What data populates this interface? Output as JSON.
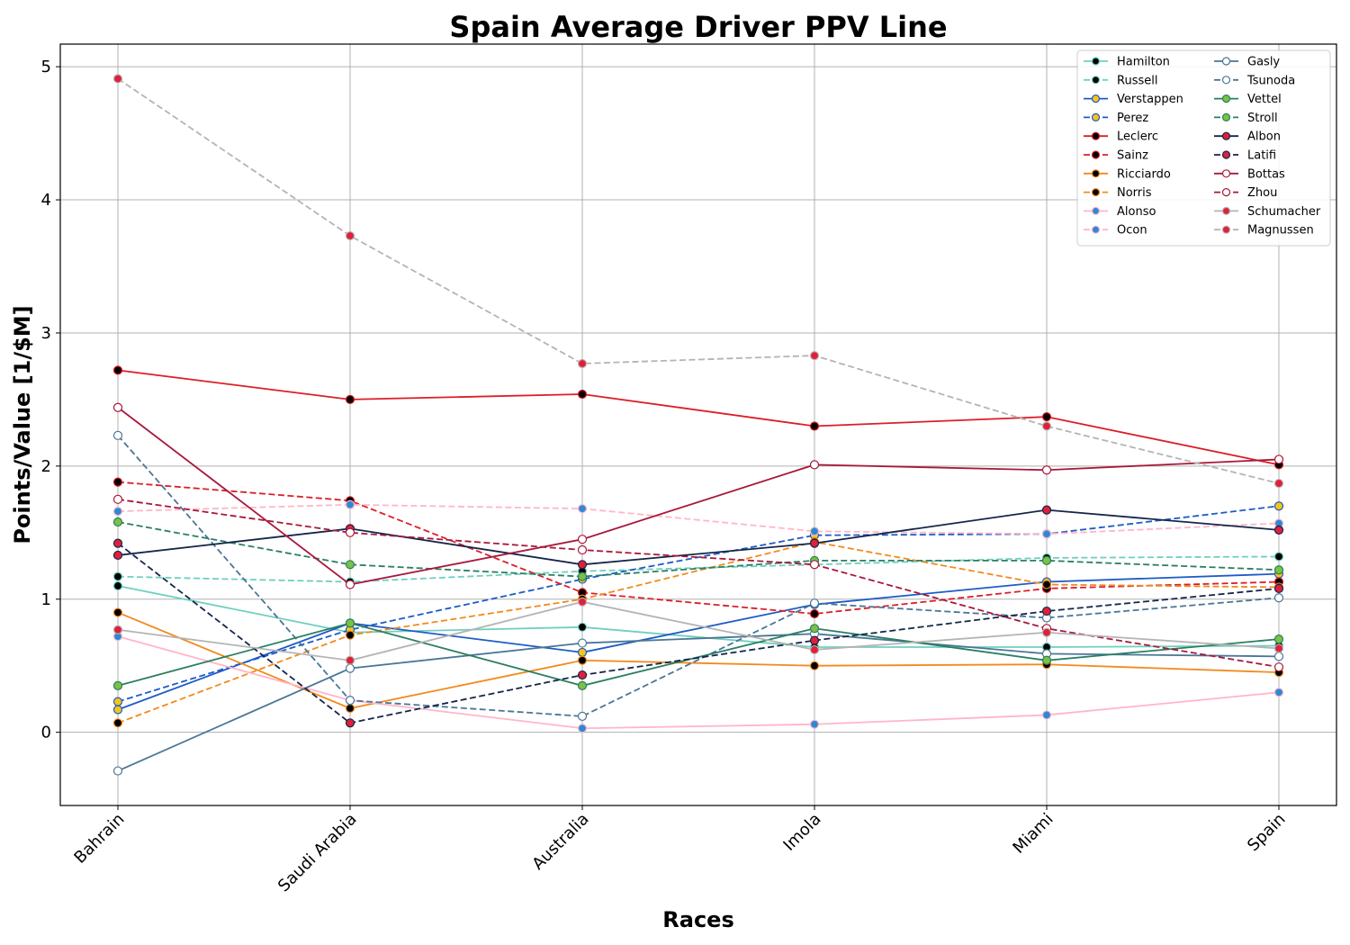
{
  "chart_data": {
    "type": "line",
    "title": "Spain Average Driver PPV Line",
    "xlabel": "Races",
    "ylabel": "Points/Value [1/$M]",
    "categories": [
      "Bahrain",
      "Saudi Arabia",
      "Australia",
      "Imola",
      "Miami",
      "Spain"
    ],
    "ylim": [
      -0.55,
      5.17
    ],
    "yticks": [
      "0",
      "1",
      "2",
      "3",
      "4",
      "5"
    ],
    "grid": true,
    "legend_position": "top-right",
    "legend_columns": 2,
    "series": [
      {
        "name": "Hamilton",
        "color": "#6fd0bf",
        "marker_face": "#000000",
        "dash": false,
        "values": [
          1.1,
          0.75,
          0.79,
          0.64,
          0.64,
          0.65
        ]
      },
      {
        "name": "Russell",
        "color": "#6fd0bf",
        "marker_face": "#000000",
        "dash": true,
        "values": [
          1.17,
          1.13,
          1.21,
          1.26,
          1.31,
          1.32
        ]
      },
      {
        "name": "Verstappen",
        "color": "#1e5bc6",
        "marker_face": "#f5c518",
        "dash": false,
        "values": [
          0.17,
          0.82,
          0.6,
          0.96,
          1.13,
          1.19
        ]
      },
      {
        "name": "Perez",
        "color": "#1e5bc6",
        "marker_face": "#f5c518",
        "dash": true,
        "values": [
          0.23,
          0.77,
          1.15,
          1.48,
          1.49,
          1.7
        ]
      },
      {
        "name": "Leclerc",
        "color": "#dc1e28",
        "marker_face": "#000000",
        "dash": false,
        "values": [
          2.72,
          2.5,
          2.54,
          2.3,
          2.37,
          2.01
        ]
      },
      {
        "name": "Sainz",
        "color": "#dc1e28",
        "marker_face": "#000000",
        "dash": true,
        "values": [
          1.88,
          1.74,
          1.05,
          0.89,
          1.08,
          1.13
        ]
      },
      {
        "name": "Ricciardo",
        "color": "#f28a1e",
        "marker_face": "#000000",
        "dash": false,
        "values": [
          0.9,
          0.18,
          0.54,
          0.5,
          0.51,
          0.45
        ]
      },
      {
        "name": "Norris",
        "color": "#f28a1e",
        "marker_face": "#000000",
        "dash": true,
        "values": [
          0.07,
          0.73,
          1.0,
          1.43,
          1.11,
          1.09
        ]
      },
      {
        "name": "Alonso",
        "color": "#ffb6c8",
        "marker_face": "#2b8ad6",
        "dash": false,
        "values": [
          0.72,
          0.24,
          0.03,
          0.06,
          0.13,
          0.3
        ]
      },
      {
        "name": "Ocon",
        "color": "#ffb6c8",
        "marker_face": "#2b8ad6",
        "dash": true,
        "values": [
          1.66,
          1.71,
          1.68,
          1.51,
          1.49,
          1.57
        ]
      },
      {
        "name": "Gasly",
        "color": "#4a7696",
        "marker_face": "#ffffff",
        "dash": false,
        "values": [
          -0.29,
          0.48,
          0.67,
          0.74,
          0.59,
          0.57
        ]
      },
      {
        "name": "Tsunoda",
        "color": "#4a7696",
        "marker_face": "#ffffff",
        "dash": true,
        "values": [
          2.23,
          0.24,
          0.12,
          0.97,
          0.86,
          1.01
        ]
      },
      {
        "name": "Vettel",
        "color": "#2a7f62",
        "marker_face": "#7bc143",
        "dash": false,
        "values": [
          0.35,
          0.82,
          0.35,
          0.78,
          0.54,
          0.7
        ]
      },
      {
        "name": "Stroll",
        "color": "#2a7f62",
        "marker_face": "#7bc143",
        "dash": true,
        "values": [
          1.58,
          1.26,
          1.17,
          1.29,
          1.29,
          1.22
        ]
      },
      {
        "name": "Albon",
        "color": "#14264a",
        "marker_face": "#e0203a",
        "dash": false,
        "values": [
          1.33,
          1.53,
          1.26,
          1.42,
          1.67,
          1.52
        ]
      },
      {
        "name": "Latifi",
        "color": "#14264a",
        "marker_face": "#e0203a",
        "dash": true,
        "values": [
          1.42,
          0.07,
          0.43,
          0.69,
          0.91,
          1.08
        ]
      },
      {
        "name": "Bottas",
        "color": "#a8183a",
        "marker_face": "#ffffff",
        "dash": false,
        "values": [
          2.44,
          1.11,
          1.45,
          2.01,
          1.97,
          2.05
        ]
      },
      {
        "name": "Zhou",
        "color": "#a8183a",
        "marker_face": "#ffffff",
        "dash": true,
        "values": [
          1.75,
          1.5,
          1.37,
          1.26,
          0.78,
          0.49
        ]
      },
      {
        "name": "Schumacher",
        "color": "#b4b4b4",
        "marker_face": "#e0203a",
        "dash": false,
        "values": [
          0.77,
          0.54,
          0.98,
          0.62,
          0.75,
          0.63
        ]
      },
      {
        "name": "Magnussen",
        "color": "#b4b4b4",
        "marker_face": "#e0203a",
        "dash": true,
        "values": [
          4.91,
          3.73,
          2.77,
          2.83,
          2.3,
          1.87
        ]
      }
    ]
  }
}
